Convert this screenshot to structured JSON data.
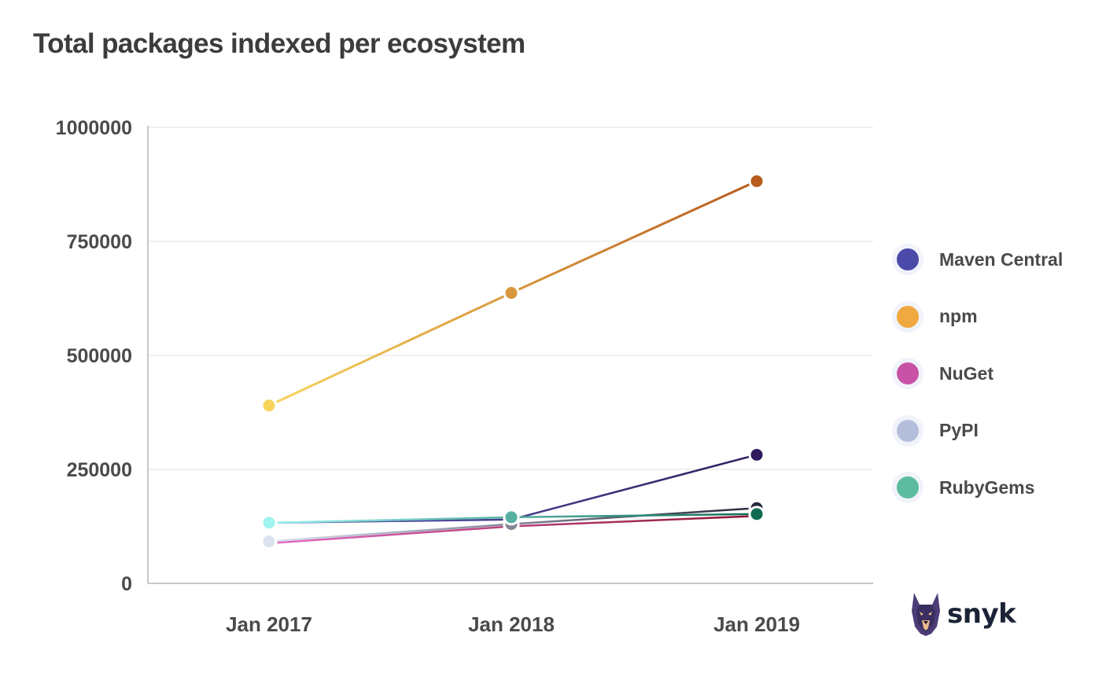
{
  "chart_data": {
    "type": "line",
    "title": "Total packages indexed per ecosystem",
    "xlabel": "",
    "ylabel": "",
    "categories": [
      "Jan 2017",
      "Jan 2018",
      "Jan 2019"
    ],
    "ylim": [
      0,
      1000000
    ],
    "yticks": [
      {
        "value": 0,
        "label": "0"
      },
      {
        "value": 250000,
        "label": "250000"
      },
      {
        "value": 500000,
        "label": "500000"
      },
      {
        "value": 750000,
        "label": "750000"
      },
      {
        "value": 1000000,
        "label": "1000000"
      }
    ],
    "grid": true,
    "legend_position": "right",
    "series": [
      {
        "name": "Maven Central",
        "key": "maven",
        "color": "#4c4aa8",
        "line_colors": [
          "#5b5fb8",
          "#2f1b5e"
        ],
        "values": [
          133000,
          140000,
          282000
        ]
      },
      {
        "name": "npm",
        "key": "npm",
        "color": "#f0a840",
        "line_colors": [
          "#f7d55c",
          "#b85a1e"
        ],
        "values": [
          390000,
          637000,
          882000
        ]
      },
      {
        "name": "NuGet",
        "key": "nuget",
        "color": "#c853a6",
        "line_colors": [
          "#e46bc3",
          "#8c1431"
        ],
        "values": [
          88000,
          125000,
          148000
        ]
      },
      {
        "name": "PyPI",
        "key": "pypi",
        "color": "#b4bedb",
        "line_colors": [
          "#dbe2f0",
          "#26293a"
        ],
        "values": [
          92000,
          130000,
          165000
        ]
      },
      {
        "name": "RubyGems",
        "key": "rubygems",
        "color": "#5dbc9f",
        "line_colors": [
          "#9ff4f0",
          "#0e6b52"
        ],
        "values": [
          133000,
          145000,
          152000
        ]
      }
    ]
  },
  "logo": {
    "text": "snyk",
    "icon": "snyk-doberman-logo-icon"
  }
}
